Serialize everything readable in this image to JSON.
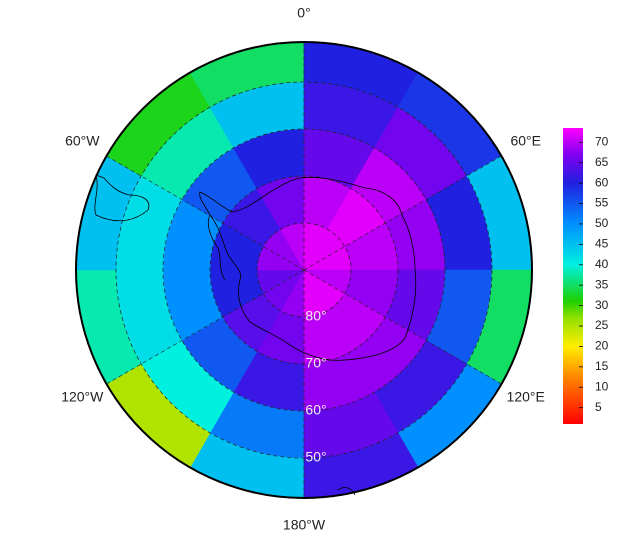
{
  "chart_data": {
    "type": "polar_map",
    "lat_limit": -41.5,
    "field": {
      "lat_edges": [
        -90,
        -80,
        -70,
        -60,
        -50,
        -41.5
      ],
      "lon_edges": [
        -180,
        -150,
        -120,
        -90,
        -60,
        -30,
        0,
        30,
        60,
        90,
        120,
        150,
        180
      ],
      "values": [
        [
          68,
          66,
          65,
          68,
          68,
          70,
          72,
          72,
          72,
          70,
          72,
          72
        ],
        [
          66,
          64,
          60,
          60,
          62,
          66,
          70,
          72,
          70,
          68,
          70,
          70
        ],
        [
          62,
          55,
          50,
          50,
          55,
          60,
          65,
          70,
          68,
          65,
          68,
          68
        ],
        [
          52,
          40,
          42,
          42,
          38,
          45,
          62,
          66,
          60,
          55,
          62,
          65
        ],
        [
          45,
          25,
          38,
          45,
          32,
          35,
          60,
          58,
          45,
          35,
          50,
          62
        ]
      ]
    },
    "lon_ticks": [
      {
        "value": 0,
        "label": "0°"
      },
      {
        "value": 60,
        "label": "60°E"
      },
      {
        "value": 120,
        "label": "120°E"
      },
      {
        "value": 180,
        "label": "180°W"
      },
      {
        "value": -120,
        "label": "120°W"
      },
      {
        "value": -60,
        "label": "60°W"
      }
    ],
    "lat_ticks": [
      {
        "value": -80,
        "label": "80°"
      },
      {
        "value": -70,
        "label": "70°"
      },
      {
        "value": -60,
        "label": "60°"
      },
      {
        "value": -50,
        "label": "50°"
      }
    ],
    "colormap": [
      [
        0,
        "#ff0000"
      ],
      [
        12,
        "#ff8000"
      ],
      [
        20,
        "#ffee00"
      ],
      [
        27,
        "#90e000"
      ],
      [
        31,
        "#20d000"
      ],
      [
        40,
        "#00f0e0"
      ],
      [
        50,
        "#0090ff"
      ],
      [
        60,
        "#2020e0"
      ],
      [
        67,
        "#8000f0"
      ],
      [
        73.5,
        "#ff00ff"
      ]
    ],
    "clim": [
      1,
      73.5
    ],
    "cticks": [
      5,
      10,
      15,
      20,
      25,
      30,
      35,
      40,
      45,
      50,
      55,
      60,
      65,
      70
    ]
  }
}
